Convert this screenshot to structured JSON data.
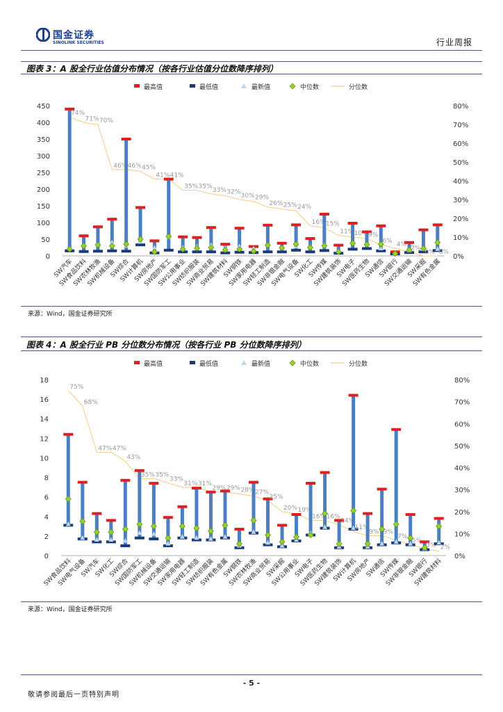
{
  "header": {
    "logo_cn": "国金证券",
    "logo_en": "SINOLINK SECURITIES",
    "doc_type": "行业周报"
  },
  "colors": {
    "max": "#e02020",
    "min": "#1a3a7a",
    "bar": "#4a7fc1",
    "latest": "#bcd8f0",
    "median": "#9ad02a",
    "pct": "#f5cf8a"
  },
  "legend": [
    "最高值",
    "最低值",
    "最新值",
    "中位数",
    "分位数"
  ],
  "figure3": {
    "title": "图表 3：A 股全行业估值分布情况（按各行业估值分位数降序排列）",
    "source": "来源：Wind，国金证券研究所"
  },
  "figure4": {
    "title": "图表 4：A 股全行业 PB 分位数分布情况（按各行业 PB 分位数降序排列）",
    "source": "来源：Wind，国金证券研究所"
  },
  "chart_data": [
    {
      "type": "bar",
      "title": "A 股全行业估值分布情况",
      "ylim": [
        0,
        450
      ],
      "yticks": [
        "0",
        "50",
        "100",
        "150",
        "200",
        "250",
        "300",
        "350",
        "400",
        "450"
      ],
      "y2lim": [
        0,
        80
      ],
      "y2ticks": [
        "0%",
        "10%",
        "20%",
        "30%",
        "40%",
        "50%",
        "60%",
        "70%",
        "80%"
      ],
      "categories": [
        "SW汽车",
        "SW食品饮料",
        "SW农林牧渔",
        "SW机械设备",
        "SW综合",
        "SW计算机",
        "SW房地产",
        "SW国防军工",
        "SW公用事业",
        "SW纺织服装",
        "SW商业贸易",
        "SW建筑材料",
        "SW钢铁",
        "SW家用电器",
        "SW轻工制造",
        "SW非银金融",
        "SW电气设备",
        "SW化工",
        "SW传媒",
        "SW建筑装饰",
        "SW电子",
        "SW医药生物",
        "SW通信",
        "SW银行",
        "SW交通运输",
        "SW采掘",
        "SW有色金属"
      ],
      "max": [
        440,
        60,
        87,
        110,
        350,
        145,
        45,
        230,
        57,
        55,
        85,
        35,
        83,
        28,
        92,
        38,
        93,
        52,
        125,
        32,
        98,
        72,
        90,
        12,
        40,
        78,
        93
      ],
      "min": [
        15,
        13,
        14,
        15,
        14,
        33,
        9,
        17,
        12,
        12,
        12,
        9,
        11,
        10,
        12,
        12,
        17,
        12,
        16,
        8,
        20,
        22,
        15,
        6,
        10,
        12,
        16
      ],
      "latest": [
        22,
        30,
        33,
        40,
        30,
        42,
        24,
        55,
        25,
        28,
        32,
        24,
        28,
        22,
        32,
        24,
        28,
        28,
        33,
        14,
        38,
        33,
        22,
        8,
        16,
        20,
        20
      ],
      "median": [
        20,
        30,
        33,
        30,
        35,
        50,
        12,
        58,
        20,
        23,
        25,
        18,
        20,
        14,
        32,
        24,
        35,
        25,
        30,
        12,
        38,
        34,
        35,
        7,
        18,
        22,
        40
      ],
      "percentile": [
        74,
        71,
        70,
        46,
        46,
        45,
        41,
        41,
        35,
        35,
        33,
        32,
        30,
        29,
        26,
        25,
        24,
        16,
        15,
        11,
        10,
        9,
        6,
        4,
        2,
        0,
        0
      ],
      "percentile_labels": [
        "74%",
        "71%",
        "70%",
        "46%",
        "46%",
        "45%",
        "41%",
        "41%",
        "35%",
        "35%",
        "33%",
        "32%",
        "30%",
        "29%",
        "26%",
        "25%",
        "24%",
        "16%",
        "15%",
        "11%",
        "10%",
        "9%",
        "6%",
        "4%",
        "2%",
        "0%",
        "0%"
      ]
    },
    {
      "type": "bar",
      "title": "A 股全行业 PB 分位数分布情况",
      "ylim": [
        0,
        18
      ],
      "yticks": [
        "0",
        "2",
        "4",
        "6",
        "8",
        "10",
        "12",
        "14",
        "16",
        "18"
      ],
      "y2lim": [
        0,
        80
      ],
      "y2ticks": [
        "0%",
        "10%",
        "20%",
        "30%",
        "40%",
        "50%",
        "60%",
        "70%",
        "80%"
      ],
      "categories": [
        "SW食品饮料",
        "SW电气设备",
        "SW汽车",
        "SW化工",
        "SW综合",
        "SW国防军工",
        "SW机械设备",
        "SW交通运输",
        "SW家用电器",
        "SW轻工制造",
        "SW纺织服装",
        "SW有色金属",
        "SW钢铁",
        "SW农林牧渔",
        "SW商业贸易",
        "SW采掘",
        "SW公用事业",
        "SW电子",
        "SW医药生物",
        "SW建筑装饰",
        "SW计算机",
        "SW房地产",
        "SW通信",
        "SW传媒",
        "SW非银金融",
        "SW银行",
        "SW建筑材料"
      ],
      "max": [
        12.4,
        7.5,
        4.3,
        3.6,
        7.7,
        8.7,
        7.4,
        3.9,
        5.0,
        6.9,
        6.5,
        6.6,
        2.7,
        7.5,
        5.8,
        3.1,
        4.2,
        7.4,
        8.5,
        3.6,
        16.4,
        4.3,
        6.8,
        12.9,
        4.2,
        1.4,
        3.8
      ],
      "min": [
        3.1,
        1.7,
        1.4,
        1.4,
        1.0,
        1.8,
        1.7,
        1.0,
        1.8,
        1.6,
        1.6,
        1.8,
        0.8,
        2.3,
        1.1,
        0.9,
        1.5,
        2.1,
        2.8,
        0.8,
        2.7,
        0.8,
        1.1,
        1.3,
        1.1,
        0.6,
        1.2
      ],
      "latest": [
        3.2,
        1.8,
        1.6,
        1.6,
        1.5,
        2.3,
        2.2,
        1.2,
        1.9,
        1.8,
        1.7,
        1.9,
        1.0,
        2.4,
        1.3,
        1.0,
        1.6,
        2.3,
        2.9,
        0.9,
        2.8,
        0.9,
        1.2,
        1.4,
        1.2,
        0.7,
        1.3
      ],
      "median": [
        5.8,
        3.5,
        2.4,
        2.4,
        2.7,
        3.2,
        3.0,
        1.8,
        3.0,
        2.8,
        2.5,
        3.1,
        1.2,
        3.6,
        2.1,
        1.4,
        1.9,
        2.1,
        4.3,
        1.2,
        4.6,
        1.2,
        2.7,
        3.2,
        1.8,
        0.8,
        3.0
      ],
      "percentile": [
        75,
        68,
        47,
        47,
        43,
        35,
        35,
        33,
        31,
        31,
        29,
        29,
        28,
        27,
        25,
        20,
        19,
        16,
        16,
        14,
        11,
        9,
        9,
        7,
        5,
        3,
        2
      ],
      "percentile_labels": [
        "75%",
        "68%",
        "47%",
        "47%",
        "43%",
        "35%",
        "35%",
        "33%",
        "31%",
        "31%",
        "29%",
        "29%",
        "28%",
        "27%",
        "25%",
        "20%",
        "19%",
        "16%",
        "16%",
        "14%",
        "11%",
        "9%",
        "9%",
        "7%",
        "5%",
        "3%",
        "2%"
      ]
    }
  ],
  "page_number": "- 5 -",
  "footer": "敬请参阅最后一页特别声明"
}
